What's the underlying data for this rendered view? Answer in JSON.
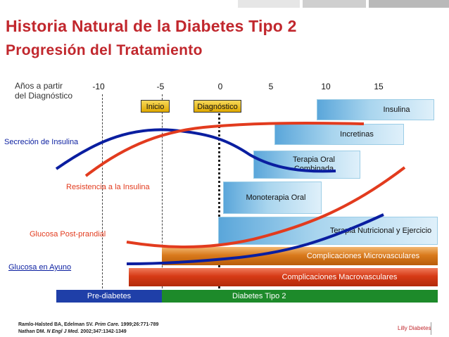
{
  "title": "Historia Natural de la Diabetes Tipo 2",
  "subtitle": "Progresión del Tratamiento",
  "axis": {
    "caption": "Años a partir\ndel Diagnóstico",
    "ticks": [
      "-10",
      "-5",
      "0",
      "5",
      "10",
      "15"
    ]
  },
  "markers": {
    "inicio": "Inicio",
    "diagnostico": "Diagnóstico"
  },
  "treatments": {
    "insulina": "Insulina",
    "incretinas": "Incretinas",
    "terapia_oral_combinada": "Terapia Oral Combinada",
    "monoterapia_oral": "Monoterapia Oral",
    "terapia_nutricional": "Terapia Nutricional y Ejercicio"
  },
  "complications": {
    "micro": "Complicaciones Microvasculares",
    "macro": "Complicaciones Macrovasculares"
  },
  "stages": {
    "prediabetes": "Pre-diabetes",
    "diabetes": "Diabetes Tipo 2"
  },
  "curves": {
    "secrecion": "Secreción de Insulina",
    "resistencia": "Resistencia a la Insulina",
    "glucosa_postprandial": "Glucosa Post-prandial",
    "glucosa_ayuno": "Glucosa en Ayuno"
  },
  "colors": {
    "title": "#c1272d",
    "blue_curve": "#0a1ea0",
    "red_curve": "#e23b1e",
    "prediabetes": "#1f3fa8",
    "diabetes": "#1d8a2a"
  },
  "references": {
    "ref1_authors": "Ramlo-Halsted BA, Edelman SV.",
    "ref1_journal": "Prim Care.",
    "ref1_details": "1999;26:771-789",
    "ref2_authors": "Nathan DM.",
    "ref2_journal": "N Engl J Med.",
    "ref2_details": "2002;347:1342-1349"
  },
  "footer": "Lilly Diabetes"
}
